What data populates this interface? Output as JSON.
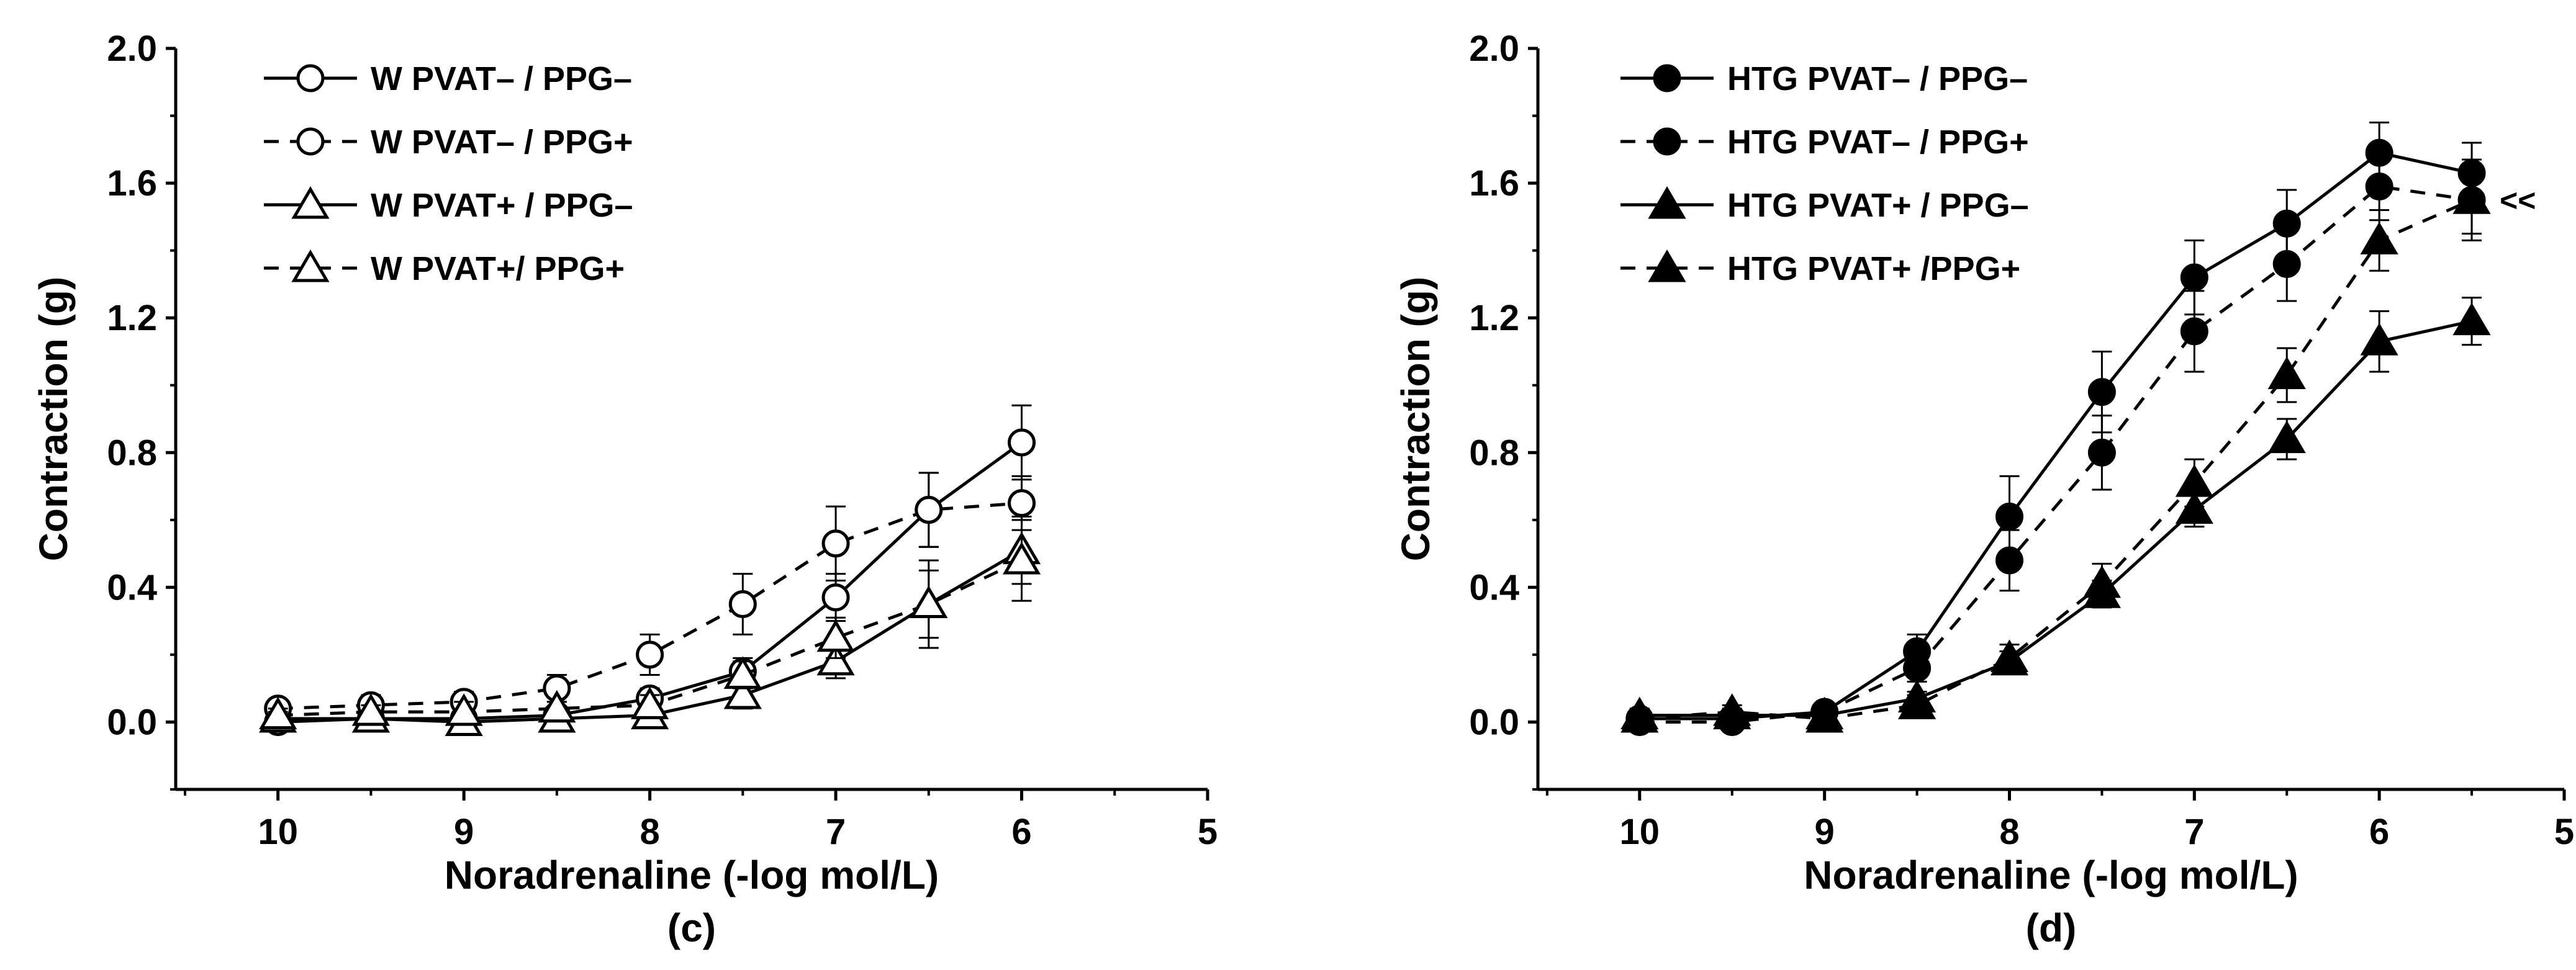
{
  "chart_data": [
    {
      "panel": "(c)",
      "type": "line",
      "xlabel": "Noradrenaline (-log mol/L)",
      "ylabel": "Contraction (g)",
      "xlim": [
        10.55,
        5.0
      ],
      "x_ticks": [
        10,
        9,
        8,
        7,
        6,
        5
      ],
      "x_tick_labels": [
        "10",
        "9",
        "8",
        "7",
        "6",
        "5"
      ],
      "ylim": [
        -0.2,
        2.0
      ],
      "y_ticks": [
        0.0,
        0.4,
        0.8,
        1.2,
        1.6,
        2.0
      ],
      "y_tick_labels": [
        "0.0",
        "0.4",
        "0.8",
        "1.2",
        "1.6",
        "2.0"
      ],
      "x_reversed": true,
      "grid": false,
      "legend_position": "top-left",
      "series": [
        {
          "name": "W PVAT– / PPG–",
          "marker": "circle",
          "filled": false,
          "line": "solid",
          "x": [
            10,
            9.5,
            9,
            8.5,
            8,
            7.5,
            7,
            6.5,
            6
          ],
          "y": [
            0.0,
            0.01,
            0.01,
            0.02,
            0.07,
            0.15,
            0.37,
            0.63,
            0.83
          ],
          "err": [
            0.02,
            0.02,
            0.02,
            0.02,
            0.03,
            0.04,
            0.07,
            0.11,
            0.11
          ]
        },
        {
          "name": "W PVAT– / PPG+",
          "marker": "circle",
          "filled": false,
          "line": "dashed",
          "x": [
            10,
            9.5,
            9,
            8.5,
            8,
            7.5,
            7,
            6.5,
            6
          ],
          "y": [
            0.04,
            0.05,
            0.06,
            0.1,
            0.2,
            0.35,
            0.53,
            0.63,
            0.65
          ],
          "err": [
            0.02,
            0.03,
            0.03,
            0.04,
            0.06,
            0.09,
            0.11,
            0.11,
            0.08
          ]
        },
        {
          "name": "W PVAT+ / PPG–",
          "marker": "triangle",
          "filled": false,
          "line": "solid",
          "x": [
            10,
            9.5,
            9,
            8.5,
            8,
            7.5,
            7,
            6.5,
            6
          ],
          "y": [
            0.01,
            0.01,
            0.0,
            0.01,
            0.02,
            0.08,
            0.18,
            0.35,
            0.51
          ],
          "err": [
            0.02,
            0.02,
            0.02,
            0.02,
            0.03,
            0.04,
            0.05,
            0.1,
            0.1
          ]
        },
        {
          "name": "W PVAT+/ PPG+",
          "marker": "triangle",
          "filled": false,
          "line": "dashed",
          "x": [
            10,
            9.5,
            9,
            8.5,
            8,
            7.5,
            7,
            6.5,
            6
          ],
          "y": [
            0.02,
            0.03,
            0.03,
            0.04,
            0.05,
            0.14,
            0.25,
            0.35,
            0.48
          ],
          "err": [
            0.02,
            0.02,
            0.03,
            0.02,
            0.03,
            0.04,
            0.06,
            0.13,
            0.12
          ]
        }
      ]
    },
    {
      "panel": "(d)",
      "type": "line",
      "xlabel": "Noradrenaline (-log mol/L)",
      "ylabel": "Contraction (g)",
      "xlim": [
        10.55,
        5.0
      ],
      "x_ticks": [
        10,
        9,
        8,
        7,
        6,
        5
      ],
      "x_tick_labels": [
        "10",
        "9",
        "8",
        "7",
        "6",
        "5"
      ],
      "ylim": [
        -0.2,
        2.0
      ],
      "y_ticks": [
        0.0,
        0.4,
        0.8,
        1.2,
        1.6,
        2.0
      ],
      "y_tick_labels": [
        "0.0",
        "0.4",
        "0.8",
        "1.2",
        "1.6",
        "2.0"
      ],
      "x_reversed": true,
      "grid": false,
      "legend_position": "top-left",
      "annotation": "<<",
      "series": [
        {
          "name": "HTG PVAT– / PPG–",
          "marker": "circle",
          "filled": true,
          "line": "solid",
          "x": [
            10,
            9.5,
            9,
            8.5,
            8,
            7.5,
            7,
            6.5,
            6,
            5.5
          ],
          "y": [
            0.01,
            0.01,
            0.03,
            0.21,
            0.61,
            0.98,
            1.32,
            1.48,
            1.69,
            1.63
          ],
          "err": [
            0.02,
            0.02,
            0.02,
            0.05,
            0.12,
            0.12,
            0.11,
            0.1,
            0.09,
            0.09
          ]
        },
        {
          "name": "HTG PVAT– / PPG+",
          "marker": "circle",
          "filled": true,
          "line": "dashed",
          "x": [
            10,
            9.5,
            9,
            8.5,
            8,
            7.5,
            7,
            6.5,
            6,
            5.5
          ],
          "y": [
            0.0,
            0.0,
            0.03,
            0.16,
            0.48,
            0.8,
            1.16,
            1.36,
            1.59,
            1.55
          ],
          "err": [
            0.02,
            0.02,
            0.02,
            0.04,
            0.09,
            0.11,
            0.12,
            0.11,
            0.1,
            0.12
          ]
        },
        {
          "name": "HTG PVAT+ / PPG–",
          "marker": "triangle",
          "filled": true,
          "line": "solid",
          "x": [
            10,
            9.5,
            9,
            8.5,
            8,
            7.5,
            7,
            6.5,
            6,
            5.5
          ],
          "y": [
            0.02,
            0.02,
            0.02,
            0.07,
            0.18,
            0.38,
            0.63,
            0.84,
            1.13,
            1.19
          ],
          "err": [
            0.02,
            0.02,
            0.02,
            0.02,
            0.03,
            0.04,
            0.05,
            0.06,
            0.09,
            0.07
          ]
        },
        {
          "name": "HTG PVAT+ /PPG+",
          "marker": "triangle",
          "filled": true,
          "line": "dashed",
          "x": [
            10,
            9.5,
            9,
            8.5,
            8,
            7.5,
            7,
            6.5,
            6,
            5.5
          ],
          "y": [
            0.01,
            0.03,
            0.01,
            0.05,
            0.19,
            0.41,
            0.71,
            1.03,
            1.43,
            1.55
          ],
          "err": [
            0.02,
            0.02,
            0.02,
            0.03,
            0.04,
            0.06,
            0.07,
            0.08,
            0.09,
            0.1
          ]
        }
      ]
    }
  ]
}
